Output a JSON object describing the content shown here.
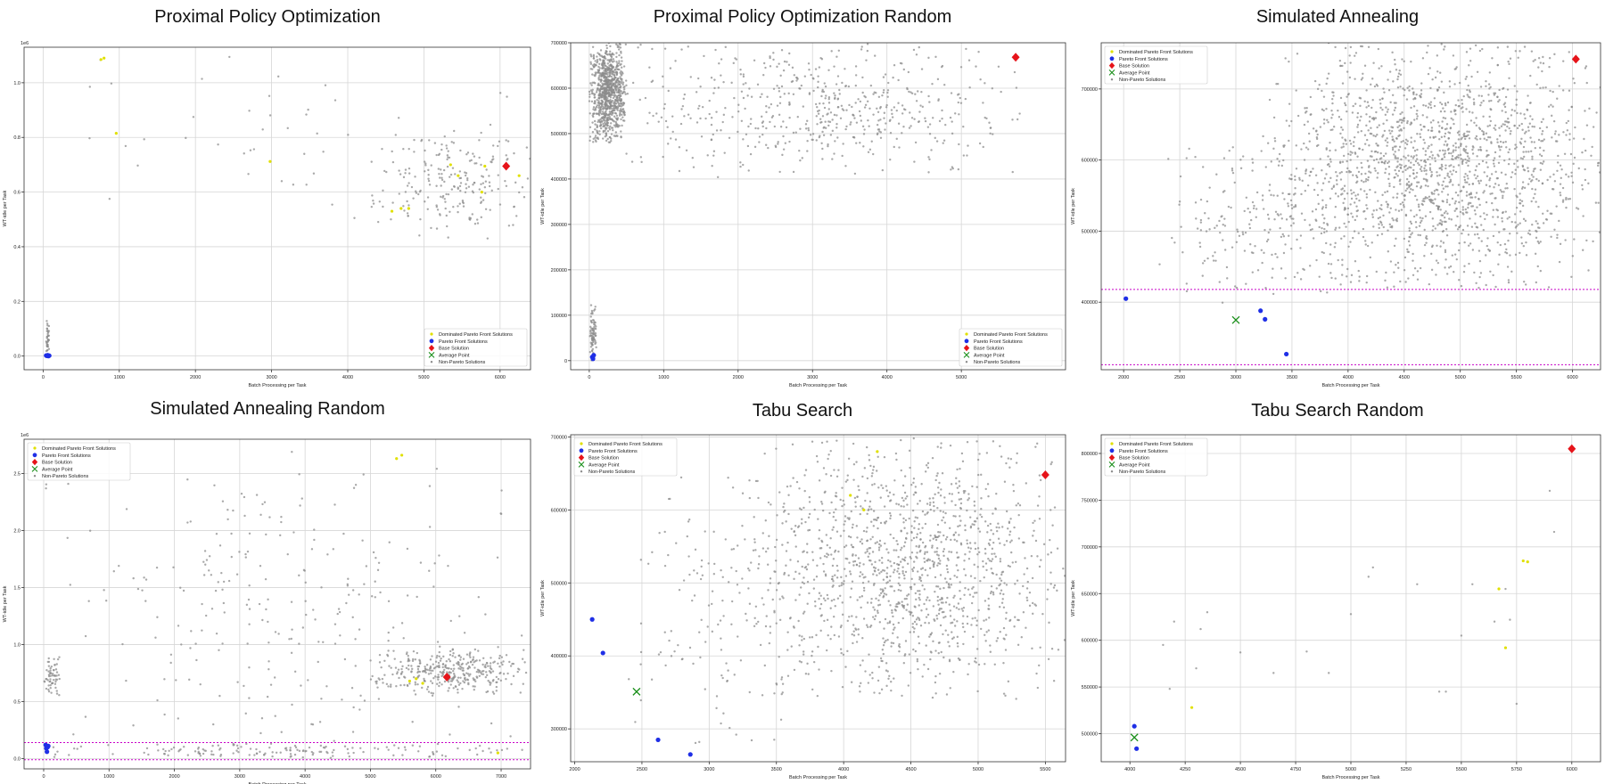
{
  "chart_data": [
    {
      "type": "scatter",
      "title": "Proximal Policy Optimization",
      "xlabel": "Batch Processing per Task",
      "ylabel": "WT-idle per Task",
      "offset_text": "1e6",
      "xlim": [
        -250,
        6400
      ],
      "ylim": [
        -50000,
        1130000
      ],
      "xticks": [
        0,
        1000,
        2000,
        3000,
        4000,
        5000,
        6000
      ],
      "xtick_labels": [
        "0",
        "1000",
        "2000",
        "3000",
        "4000",
        "5000",
        "6000"
      ],
      "yticks": [
        0,
        200000,
        400000,
        600000,
        800000,
        1000000
      ],
      "ytick_labels": [
        "0.0",
        "0.2",
        "0.4",
        "0.6",
        "0.8",
        "1.0"
      ],
      "grid": true,
      "legend_position": "lower right",
      "legend": [
        "Dominated Pareto Front Solutions",
        "Pareto Front Solutions",
        "Base Solution",
        "Average Point",
        "Non-Pareto Solutions"
      ],
      "series": [
        {
          "name": "Dominated Pareto Front Solutions",
          "x": [
            760,
            800,
            960,
            2980,
            4580,
            4800,
            5350,
            5760,
            5800,
            6250,
            5450,
            4700
          ],
          "y": [
            1085000,
            1090000,
            815000,
            712000,
            530000,
            540000,
            700000,
            600000,
            695000,
            660000,
            660000,
            540000
          ]
        },
        {
          "name": "Pareto Front Solutions",
          "x": [
            40,
            50,
            60,
            70,
            80
          ],
          "y": [
            2000,
            1000,
            3000,
            0,
            1500
          ]
        },
        {
          "name": "Base Solution",
          "x": [
            6080
          ],
          "y": [
            695000
          ]
        },
        {
          "name": "Average Point",
          "x": [],
          "y": []
        },
        {
          "name": "Non-Pareto Solutions",
          "x": [],
          "y": []
        }
      ],
      "clusters": [
        {
          "x_range": [
            4300,
            6400
          ],
          "y_range": [
            430000,
            850000
          ],
          "count": 220
        },
        {
          "x_range": [
            40,
            80
          ],
          "y_range": [
            0,
            130000
          ],
          "count": 40
        },
        {
          "x_range": [
            400,
            6300
          ],
          "y_range": [
            500000,
            1120000
          ],
          "count": 45
        }
      ]
    },
    {
      "type": "scatter",
      "title": "Proximal Policy Optimization Random",
      "xlabel": "Batch Processing per Task",
      "ylabel": "WT-idle per Task",
      "offset_text": "",
      "xlim": [
        -250,
        6400
      ],
      "ylim": [
        -20000,
        700000
      ],
      "xticks": [
        0,
        1000,
        2000,
        3000,
        4000,
        5000
      ],
      "xtick_labels": [
        "0",
        "1000",
        "2000",
        "3000",
        "4000",
        "5000"
      ],
      "yticks": [
        0,
        100000,
        200000,
        300000,
        400000,
        500000,
        600000,
        700000
      ],
      "ytick_labels": [
        "0",
        "100000",
        "200000",
        "300000",
        "400000",
        "500000",
        "600000",
        "700000"
      ],
      "grid": true,
      "legend_position": "lower right",
      "legend": [
        "Dominated Pareto Front Solutions",
        "Pareto Front Solutions",
        "Base Solution",
        "Average Point",
        "Non-Pareto Solutions"
      ],
      "series": [
        {
          "name": "Dominated Pareto Front Solutions",
          "x": [],
          "y": []
        },
        {
          "name": "Pareto Front Solutions",
          "x": [
            40,
            50,
            60
          ],
          "y": [
            8000,
            4000,
            12000
          ]
        },
        {
          "name": "Base Solution",
          "x": [
            5730
          ],
          "y": [
            668000
          ]
        },
        {
          "name": "Average Point",
          "x": [],
          "y": []
        },
        {
          "name": "Non-Pareto Solutions",
          "x": [],
          "y": []
        }
      ],
      "clusters": [
        {
          "x_range": [
            0,
            500
          ],
          "y_range": [
            480000,
            700000
          ],
          "count": 900
        },
        {
          "x_range": [
            400,
            5800
          ],
          "y_range": [
            400000,
            700000
          ],
          "count": 550
        },
        {
          "x_range": [
            0,
            100
          ],
          "y_range": [
            0,
            130000
          ],
          "count": 80
        }
      ]
    },
    {
      "type": "scatter",
      "title": "Simulated Annealing",
      "xlabel": "Batch Processing per Task",
      "ylabel": "WT-idle per Task",
      "offset_text": "",
      "xlim": [
        1800,
        6250
      ],
      "ylim": [
        305000,
        765000
      ],
      "xticks": [
        2000,
        2500,
        3000,
        3500,
        4000,
        4500,
        5000,
        5500,
        6000
      ],
      "xtick_labels": [
        "2000",
        "2500",
        "3000",
        "3500",
        "4000",
        "4500",
        "5000",
        "5500",
        "6000"
      ],
      "yticks": [
        400000,
        500000,
        600000,
        700000
      ],
      "ytick_labels": [
        "400000",
        "500000",
        "600000",
        "700000"
      ],
      "grid": true,
      "legend_position": "upper left",
      "legend": [
        "Dominated Pareto Front Solutions",
        "Pareto Front Solutions",
        "Base Solution",
        "Average Point",
        "Non-Pareto Solutions"
      ],
      "hlines": [
        418000,
        312000
      ],
      "series": [
        {
          "name": "Dominated Pareto Front Solutions",
          "x": [],
          "y": []
        },
        {
          "name": "Pareto Front Solutions",
          "x": [
            2020,
            3220,
            3260,
            3450
          ],
          "y": [
            405000,
            388000,
            376000,
            327000
          ]
        },
        {
          "name": "Base Solution",
          "x": [
            6030
          ],
          "y": [
            742000
          ]
        },
        {
          "name": "Average Point",
          "x": [
            3000
          ],
          "y": [
            375000
          ]
        },
        {
          "name": "Non-Pareto Solutions",
          "x": [],
          "y": []
        }
      ],
      "clusters": [
        {
          "x_range": [
            3300,
            6250
          ],
          "y_range": [
            420000,
            765000
          ],
          "count": 1700
        },
        {
          "x_range": [
            2300,
            4200
          ],
          "y_range": [
            390000,
            640000
          ],
          "count": 200
        }
      ]
    },
    {
      "type": "scatter",
      "title": "Simulated Annealing Random",
      "xlabel": "Batch Processing per Task",
      "ylabel": "WT-idle per Task",
      "offset_text": "1e6",
      "xlim": [
        -300,
        7450
      ],
      "ylim": [
        -90000,
        2800000
      ],
      "xticks": [
        0,
        1000,
        2000,
        3000,
        4000,
        5000,
        6000,
        7000
      ],
      "xtick_labels": [
        "0",
        "1000",
        "2000",
        "3000",
        "4000",
        "5000",
        "6000",
        "7000"
      ],
      "yticks": [
        0,
        500000,
        1000000,
        1500000,
        2000000,
        2500000
      ],
      "ytick_labels": [
        "0.0",
        "0.5",
        "1.0",
        "1.5",
        "2.0",
        "2.5"
      ],
      "grid": true,
      "legend_position": "upper left",
      "legend": [
        "Dominated Pareto Front Solutions",
        "Pareto Front Solutions",
        "Base Solution",
        "Average Point",
        "Non-Pareto Solutions"
      ],
      "hlines": [
        140000,
        -10000
      ],
      "series": [
        {
          "name": "Dominated Pareto Front Solutions",
          "x": [
            5400,
            5480,
            5600,
            5700,
            5800,
            6950
          ],
          "y": [
            2630000,
            2660000,
            680000,
            700000,
            660000,
            50000
          ]
        },
        {
          "name": "Pareto Front Solutions",
          "x": [
            30,
            40,
            50,
            60,
            70
          ],
          "y": [
            120000,
            90000,
            60000,
            100000,
            110000
          ]
        },
        {
          "name": "Base Solution",
          "x": [
            6170
          ],
          "y": [
            715000
          ]
        },
        {
          "name": "Average Point",
          "x": [],
          "y": []
        },
        {
          "name": "Non-Pareto Solutions",
          "x": [],
          "y": []
        }
      ],
      "clusters": [
        {
          "x_range": [
            5000,
            7400
          ],
          "y_range": [
            550000,
            960000
          ],
          "count": 350
        },
        {
          "x_range": [
            0,
            250
          ],
          "y_range": [
            550000,
            900000
          ],
          "count": 60
        },
        {
          "x_range": [
            0,
            7400
          ],
          "y_range": [
            0,
            2750000
          ],
          "count": 260
        },
        {
          "x_range": [
            0,
            7400
          ],
          "y_range": [
            0,
            130000
          ],
          "count": 150
        }
      ]
    },
    {
      "type": "scatter",
      "title": "Tabu Search",
      "xlabel": "Batch Processing per Task",
      "ylabel": "WT-idle per Task",
      "offset_text": "",
      "xlim": [
        1970,
        5650
      ],
      "ylim": [
        255000,
        703000
      ],
      "xticks": [
        2000,
        2500,
        3000,
        3500,
        4000,
        4500,
        5000,
        5500
      ],
      "xtick_labels": [
        "2000",
        "2500",
        "3000",
        "3500",
        "4000",
        "4500",
        "5000",
        "5500"
      ],
      "yticks": [
        300000,
        400000,
        500000,
        600000,
        700000
      ],
      "ytick_labels": [
        "300000",
        "400000",
        "500000",
        "600000",
        "700000"
      ],
      "grid": true,
      "legend_position": "upper left",
      "legend": [
        "Dominated Pareto Front Solutions",
        "Pareto Front Solutions",
        "Base Solution",
        "Average Point",
        "Non-Pareto Solutions"
      ],
      "series": [
        {
          "name": "Dominated Pareto Front Solutions",
          "x": [
            4050,
            4150,
            4250
          ],
          "y": [
            620000,
            600000,
            680000
          ]
        },
        {
          "name": "Pareto Front Solutions",
          "x": [
            2130,
            2210,
            2620,
            2860
          ],
          "y": [
            450000,
            404000,
            285000,
            265000
          ]
        },
        {
          "name": "Base Solution",
          "x": [
            5500
          ],
          "y": [
            648000
          ]
        },
        {
          "name": "Average Point",
          "x": [
            2460
          ],
          "y": [
            351000
          ]
        },
        {
          "name": "Non-Pareto Solutions",
          "x": [],
          "y": []
        }
      ],
      "clusters": [
        {
          "x_range": [
            3300,
            5650
          ],
          "y_range": [
            340000,
            700000
          ],
          "count": 1300
        },
        {
          "x_range": [
            2400,
            3800
          ],
          "y_range": [
            280000,
            650000
          ],
          "count": 150
        }
      ]
    },
    {
      "type": "scatter",
      "title": "Tabu Search Random",
      "xlabel": "Batch Processing per Task",
      "ylabel": "WT-idle per Task",
      "offset_text": "",
      "xlim": [
        3870,
        6130
      ],
      "ylim": [
        470000,
        820000
      ],
      "xticks": [
        4000,
        4250,
        4500,
        4750,
        5000,
        5250,
        5500,
        5750,
        6000
      ],
      "xtick_labels": [
        "4000",
        "4250",
        "4500",
        "4750",
        "5000",
        "5250",
        "5500",
        "5750",
        "6000"
      ],
      "yticks": [
        500000,
        550000,
        600000,
        650000,
        700000,
        750000,
        800000
      ],
      "ytick_labels": [
        "500000",
        "550000",
        "600000",
        "650000",
        "700000",
        "750000",
        "800000"
      ],
      "grid": true,
      "legend_position": "upper left",
      "legend": [
        "Dominated Pareto Front Solutions",
        "Pareto Front Solutions",
        "Base Solution",
        "Average Point",
        "Non-Pareto Solutions"
      ],
      "series": [
        {
          "name": "Dominated Pareto Front Solutions",
          "x": [
            4280,
            5670,
            5700,
            5780,
            5800
          ],
          "y": [
            528000,
            655000,
            592000,
            685000,
            684000
          ]
        },
        {
          "name": "Pareto Front Solutions",
          "x": [
            4020,
            4030
          ],
          "y": [
            508000,
            484000
          ]
        },
        {
          "name": "Base Solution",
          "x": [
            6000
          ],
          "y": [
            805000
          ]
        },
        {
          "name": "Average Point",
          "x": [
            4020
          ],
          "y": [
            496000
          ]
        },
        {
          "name": "Non-Pareto Solutions",
          "x": [
            4150,
            4180,
            4200,
            4300,
            4320,
            4350,
            4500,
            4650,
            4800,
            4900,
            5000,
            5080,
            5100,
            5300,
            5400,
            5430,
            5500,
            5550,
            5650,
            5700,
            5720,
            5750,
            5900,
            5920
          ],
          "y": [
            595000,
            548000,
            620000,
            570000,
            612000,
            630000,
            587000,
            565000,
            588000,
            565000,
            628000,
            668000,
            678000,
            660000,
            545000,
            545000,
            605000,
            660000,
            620000,
            655000,
            622000,
            532000,
            760000,
            716000
          ]
        }
      ],
      "clusters": []
    }
  ]
}
